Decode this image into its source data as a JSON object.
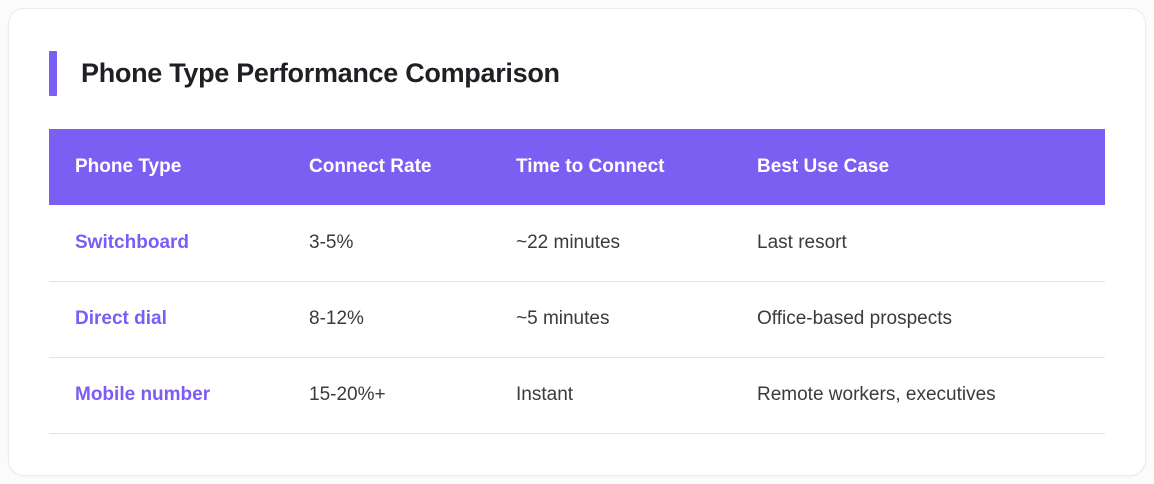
{
  "card": {
    "title": "Phone Type Performance Comparison"
  },
  "table": {
    "columns": [
      {
        "label": "Phone Type"
      },
      {
        "label": "Connect Rate"
      },
      {
        "label": "Time to Connect"
      },
      {
        "label": "Best Use Case"
      }
    ],
    "rows": [
      {
        "phone_type": "Switchboard",
        "connect_rate": "3-5%",
        "time_to_connect": "~22 minutes",
        "best_use_case": "Last resort"
      },
      {
        "phone_type": "Direct dial",
        "connect_rate": "8-12%",
        "time_to_connect": "~5 minutes",
        "best_use_case": "Office-based prospects"
      },
      {
        "phone_type": "Mobile number",
        "connect_rate": "15-20%+",
        "time_to_connect": "Instant",
        "best_use_case": "Remote workers, executives"
      }
    ]
  },
  "colors": {
    "accent": "#7b5ff3",
    "header_background": "#7b5ff3",
    "header_text": "#ffffff",
    "link_text": "#7b5cf5",
    "body_text": "#3a3a3f",
    "title_text": "#1f1f24",
    "divider": "#e3e3e8",
    "card_background": "#ffffff"
  }
}
